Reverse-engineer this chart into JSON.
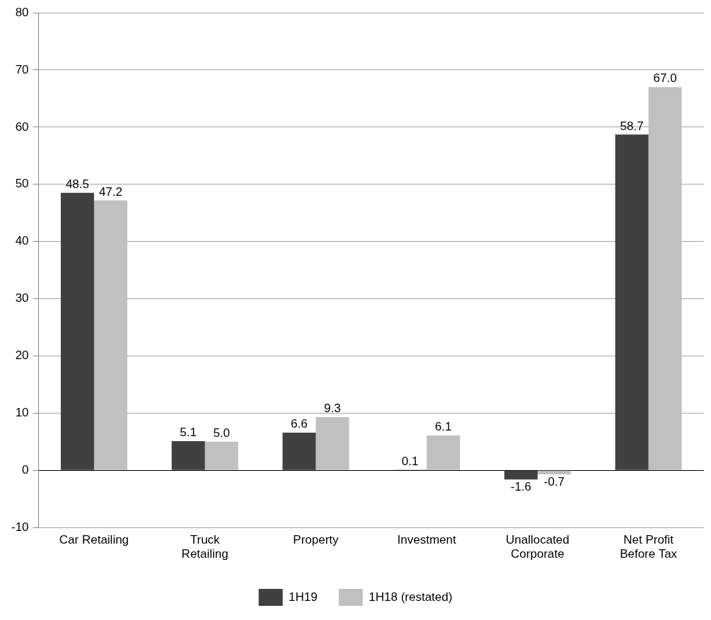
{
  "chart_data": {
    "type": "bar",
    "categories": [
      "Car Retailing",
      "Truck Retailing",
      "Property",
      "Investment",
      "Unallocated Corporate",
      "Net Profit Before Tax"
    ],
    "series": [
      {
        "name": "1H19",
        "color": "#404040",
        "values": [
          48.5,
          5.1,
          6.6,
          0.1,
          -1.6,
          58.7
        ],
        "value_labels": [
          "48.5",
          "5.1",
          "6.6",
          "0.1",
          "-1.6",
          "58.7"
        ]
      },
      {
        "name": "1H18 (restated)",
        "color": "#c0c0c0",
        "values": [
          47.2,
          5.0,
          9.3,
          6.1,
          -0.7,
          67.0
        ],
        "value_labels": [
          "47.2",
          "5.0",
          "9.3",
          "6.1",
          "-0.7",
          "67.0"
        ]
      }
    ],
    "ylim": [
      -10,
      80
    ],
    "yticks": [
      -10,
      0,
      10,
      20,
      30,
      40,
      50,
      60,
      70,
      80
    ],
    "grid": "y",
    "legend": "bottom"
  }
}
